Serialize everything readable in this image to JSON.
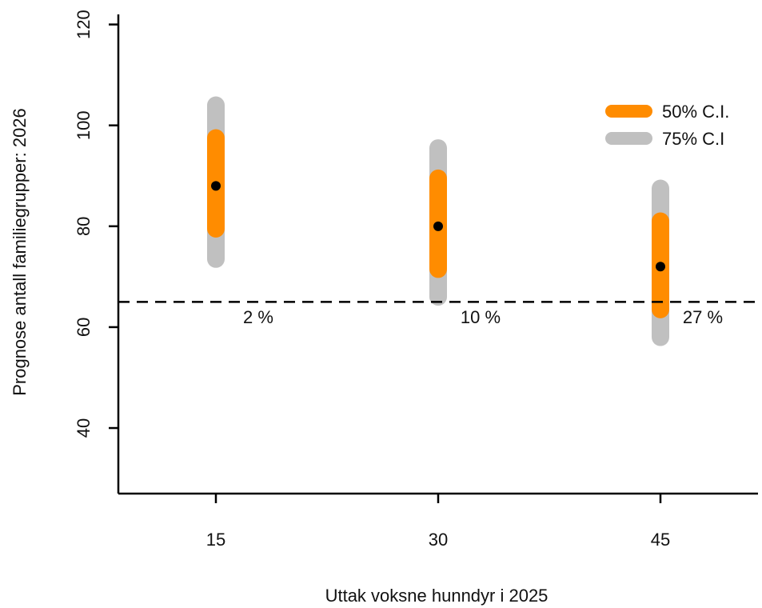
{
  "chart_data": {
    "type": "scatter",
    "xlabel": "Uttak voksne hunndyr i 2025",
    "ylabel": "Prognose antall familiegrupper: 2026",
    "ylim": [
      27,
      122
    ],
    "y_ticks": [
      40,
      60,
      80,
      100,
      120
    ],
    "categories": [
      "15",
      "30",
      "45"
    ],
    "points": [
      {
        "x": "15",
        "median": 88,
        "ci50": [
          79.5,
          97.5
        ],
        "ci75": [
          73.5,
          104
        ],
        "percent_label": "2 %"
      },
      {
        "x": "30",
        "median": 80,
        "ci50": [
          71.5,
          89.5
        ],
        "ci75": [
          66,
          95.5
        ],
        "percent_label": "10 %"
      },
      {
        "x": "45",
        "median": 72,
        "ci50": [
          63.5,
          81
        ],
        "ci75": [
          58,
          87.5
        ],
        "percent_label": "27 %"
      }
    ],
    "threshold": 65,
    "legend": {
      "position": "top-right",
      "entries": [
        {
          "label": "50% C.I.",
          "color": "#ff8c00"
        },
        {
          "label": "75% C.I",
          "color": "#c0c0c0"
        }
      ]
    },
    "colors": {
      "ci50": "#ff8c00",
      "ci75": "#c0c0c0",
      "point": "#000000",
      "axis": "#000000"
    },
    "grid": false
  }
}
